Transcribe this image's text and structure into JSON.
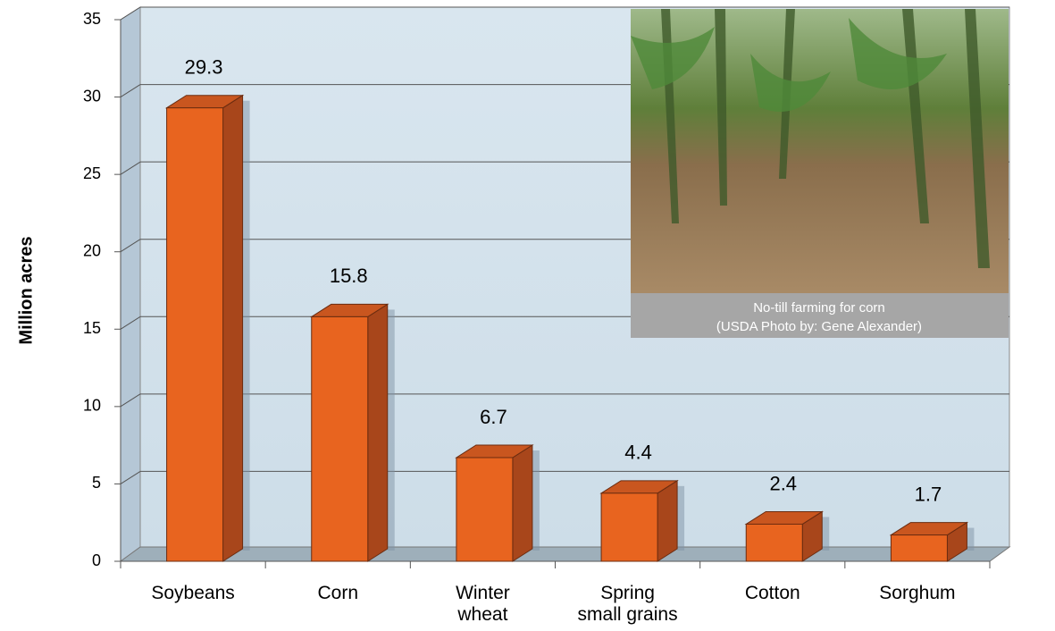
{
  "chart_data": {
    "type": "bar3d",
    "y_label": "Million acres",
    "categories": [
      "Soybeans",
      "Corn",
      "Winter\nwheat",
      "Spring\nsmall grains",
      "Cotton",
      "Sorghum"
    ],
    "values": [
      29.3,
      15.8,
      6.7,
      4.4,
      2.4,
      1.7
    ],
    "color": "#e8641f",
    "ylim": [
      0,
      35
    ],
    "yticks": [
      0,
      5,
      10,
      15,
      20,
      25,
      30,
      35
    ],
    "grid": true,
    "annotations": [
      "No-till farming for corn",
      "(USDA Photo by: Gene Alexander)"
    ]
  }
}
